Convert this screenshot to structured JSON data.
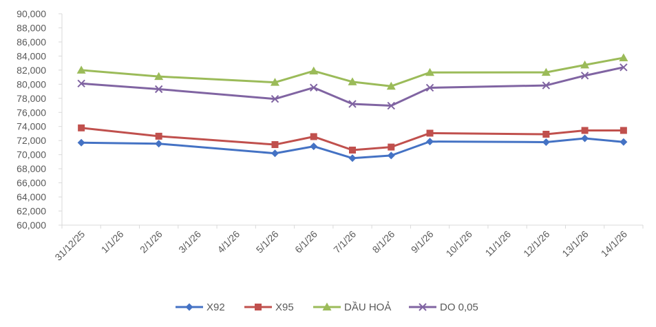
{
  "chart_data": {
    "type": "line",
    "x": [
      "31/12/25",
      "1/1/26",
      "2/1/26",
      "3/1/26",
      "4/1/26",
      "5/1/26",
      "6/1/26",
      "7/1/26",
      "8/1/26",
      "9/1/26",
      "10/1/26",
      "11/1/26",
      "12/1/26",
      "13/1/26",
      "14/1/26"
    ],
    "ylim": [
      60000,
      90000
    ],
    "yticks": [
      "60,000",
      "62,000",
      "64,000",
      "66,000",
      "68,000",
      "70,000",
      "72,000",
      "74,000",
      "76,000",
      "78,000",
      "80,000",
      "82,000",
      "84,000",
      "86,000",
      "88,000",
      "90,000"
    ],
    "grid": false,
    "legend_position": "bottom",
    "series": [
      {
        "name": "X92",
        "color": "#4472C4",
        "marker": "diamond",
        "points": [
          [
            "31/12/25",
            71700
          ],
          [
            "2/1/26",
            71560
          ],
          [
            "5/1/26",
            70190
          ],
          [
            "6/1/26",
            71180
          ],
          [
            "7/1/26",
            69500
          ],
          [
            "8/1/26",
            69880
          ],
          [
            "9/1/26",
            71860
          ],
          [
            "12/1/26",
            71780
          ],
          [
            "13/1/26",
            72310
          ],
          [
            "14/1/26",
            71800
          ]
        ]
      },
      {
        "name": "X95",
        "color": "#C0504D",
        "marker": "square",
        "points": [
          [
            "31/12/25",
            73800
          ],
          [
            "2/1/26",
            72620
          ],
          [
            "5/1/26",
            71430
          ],
          [
            "6/1/26",
            72560
          ],
          [
            "7/1/26",
            70650
          ],
          [
            "8/1/26",
            71080
          ],
          [
            "9/1/26",
            73050
          ],
          [
            "12/1/26",
            72900
          ],
          [
            "13/1/26",
            73440
          ],
          [
            "14/1/26",
            73440
          ]
        ]
      },
      {
        "name": "DẦU HOẢ",
        "color": "#9BBB59",
        "marker": "triangle",
        "points": [
          [
            "31/12/25",
            82000
          ],
          [
            "2/1/26",
            81100
          ],
          [
            "5/1/26",
            80260
          ],
          [
            "6/1/26",
            81880
          ],
          [
            "7/1/26",
            80340
          ],
          [
            "8/1/26",
            79720
          ],
          [
            "9/1/26",
            81670
          ],
          [
            "12/1/26",
            81680
          ],
          [
            "13/1/26",
            82730
          ],
          [
            "14/1/26",
            83750
          ]
        ]
      },
      {
        "name": "DO 0,05",
        "color": "#8064A2",
        "marker": "x",
        "points": [
          [
            "31/12/25",
            80100
          ],
          [
            "2/1/26",
            79300
          ],
          [
            "5/1/26",
            77910
          ],
          [
            "6/1/26",
            79520
          ],
          [
            "7/1/26",
            77200
          ],
          [
            "8/1/26",
            76950
          ],
          [
            "9/1/26",
            79500
          ],
          [
            "12/1/26",
            79830
          ],
          [
            "13/1/26",
            81220
          ],
          [
            "14/1/26",
            82400
          ]
        ]
      }
    ]
  }
}
